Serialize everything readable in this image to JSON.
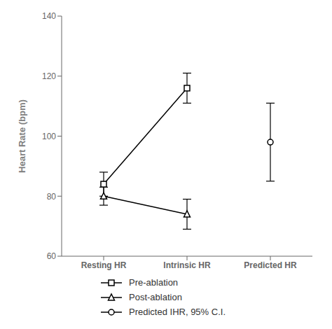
{
  "chart_data": {
    "type": "line",
    "categories": [
      "Resting HR",
      "Intrinsic HR",
      "Predicted HR"
    ],
    "series": [
      {
        "name": "Pre-ablation",
        "color": "#000000",
        "marker": "square",
        "line_style": "solid",
        "values": [
          84,
          116,
          null
        ],
        "errors": [
          4,
          5,
          null
        ]
      },
      {
        "name": "Post-ablation",
        "color": "#000000",
        "marker": "triangle",
        "line_style": "solid",
        "values": [
          80,
          74,
          null
        ],
        "errors": [
          3,
          5,
          null
        ]
      },
      {
        "name": "Predicted IHR, 95% C.I.",
        "color": "#000000",
        "marker": "circle",
        "line_style": "none",
        "values": [
          null,
          null,
          98
        ],
        "errors": [
          null,
          null,
          13
        ]
      }
    ],
    "ylabel": "Heart Rate (bpm)",
    "ylim": [
      60,
      140
    ],
    "yticks": [
      60,
      80,
      100,
      120,
      140
    ],
    "grid": false,
    "legend": "bottom"
  }
}
